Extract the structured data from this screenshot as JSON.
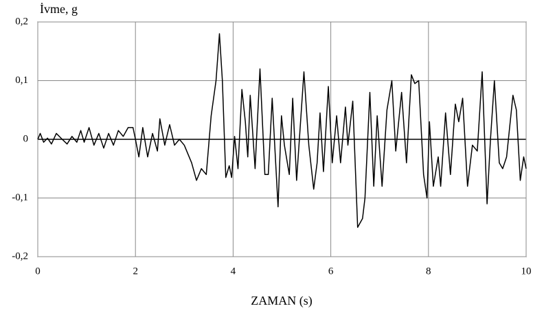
{
  "chart_data": {
    "type": "line",
    "y_label": "İvme, g",
    "x_label": "ZAMAN (s)",
    "x": [
      0,
      0.05,
      0.12,
      0.2,
      0.28,
      0.38,
      0.5,
      0.6,
      0.7,
      0.8,
      0.88,
      0.95,
      1.05,
      1.15,
      1.25,
      1.35,
      1.45,
      1.55,
      1.65,
      1.75,
      1.85,
      1.95,
      2.0,
      2.07,
      2.15,
      2.25,
      2.35,
      2.45,
      2.5,
      2.6,
      2.7,
      2.8,
      2.9,
      3.0,
      3.15,
      3.25,
      3.35,
      3.45,
      3.55,
      3.65,
      3.72,
      3.78,
      3.85,
      3.92,
      3.97,
      4.03,
      4.1,
      4.18,
      4.25,
      4.3,
      4.35,
      4.45,
      4.55,
      4.65,
      4.72,
      4.8,
      4.92,
      4.99,
      5.05,
      5.15,
      5.22,
      5.3,
      5.45,
      5.55,
      5.65,
      5.72,
      5.78,
      5.85,
      5.95,
      6.03,
      6.12,
      6.2,
      6.3,
      6.35,
      6.45,
      6.55,
      6.65,
      6.7,
      6.8,
      6.88,
      6.95,
      7.05,
      7.15,
      7.25,
      7.33,
      7.45,
      7.55,
      7.65,
      7.72,
      7.8,
      7.9,
      7.97,
      8.02,
      8.1,
      8.2,
      8.25,
      8.35,
      8.45,
      8.55,
      8.62,
      8.7,
      8.8,
      8.9,
      9.0,
      9.1,
      9.2,
      9.27,
      9.35,
      9.45,
      9.52,
      9.6,
      9.73,
      9.8,
      9.88,
      9.95,
      10
    ],
    "series": [
      {
        "color": "#000000",
        "values": [
          0,
          0.01,
          -0.005,
          0.002,
          -0.008,
          0.01,
          0,
          -0.008,
          0.005,
          -0.005,
          0.015,
          -0.005,
          0.02,
          -0.01,
          0.01,
          -0.015,
          0.01,
          -0.01,
          0.015,
          0.005,
          0.02,
          0.02,
          0,
          -0.03,
          0.02,
          -0.03,
          0.01,
          -0.02,
          0.035,
          -0.01,
          0.025,
          -0.01,
          0,
          -0.01,
          -0.04,
          -0.07,
          -0.05,
          -0.06,
          0.04,
          0.1,
          0.18,
          0.1,
          -0.065,
          -0.045,
          -0.065,
          0.005,
          -0.05,
          0.085,
          0.03,
          -0.03,
          0.075,
          -0.05,
          0.12,
          -0.06,
          -0.06,
          0.07,
          -0.115,
          0.04,
          -0.01,
          -0.06,
          0.07,
          -0.07,
          0.115,
          -0.01,
          -0.085,
          -0.04,
          0.045,
          -0.055,
          0.09,
          -0.04,
          0.04,
          -0.04,
          0.055,
          -0.01,
          0.065,
          -0.15,
          -0.135,
          -0.1,
          0.08,
          -0.08,
          0.04,
          -0.08,
          0.05,
          0.1,
          -0.02,
          0.08,
          -0.04,
          0.11,
          0.095,
          0.1,
          -0.06,
          -0.1,
          0.03,
          -0.08,
          -0.03,
          -0.08,
          0.045,
          -0.06,
          0.06,
          0.03,
          0.07,
          -0.08,
          -0.01,
          -0.02,
          0.115,
          -0.11,
          0,
          0.1,
          -0.04,
          -0.05,
          -0.03,
          0.075,
          0.05,
          -0.07,
          -0.03,
          -0.05
        ]
      }
    ],
    "xlim": [
      0,
      10
    ],
    "xticks": [
      0,
      2,
      4,
      6,
      8,
      10
    ],
    "ylim": [
      -0.2,
      0.2
    ],
    "yticks": [
      {
        "value": -0.2,
        "label": "-0,2"
      },
      {
        "value": -0.1,
        "label": "-0,1"
      },
      0,
      {
        "value": 0.1,
        "label": "0,1"
      },
      {
        "value": 0.2,
        "label": "0,2"
      }
    ],
    "grid": true
  }
}
